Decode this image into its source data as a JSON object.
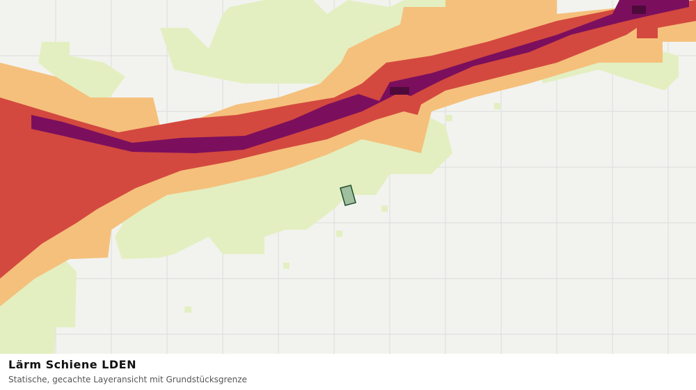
{
  "title": "Lärm Schiene LDEN",
  "subtitle": "Statische, gecachte Layeransicht mit Grundstücksgrenze"
}
